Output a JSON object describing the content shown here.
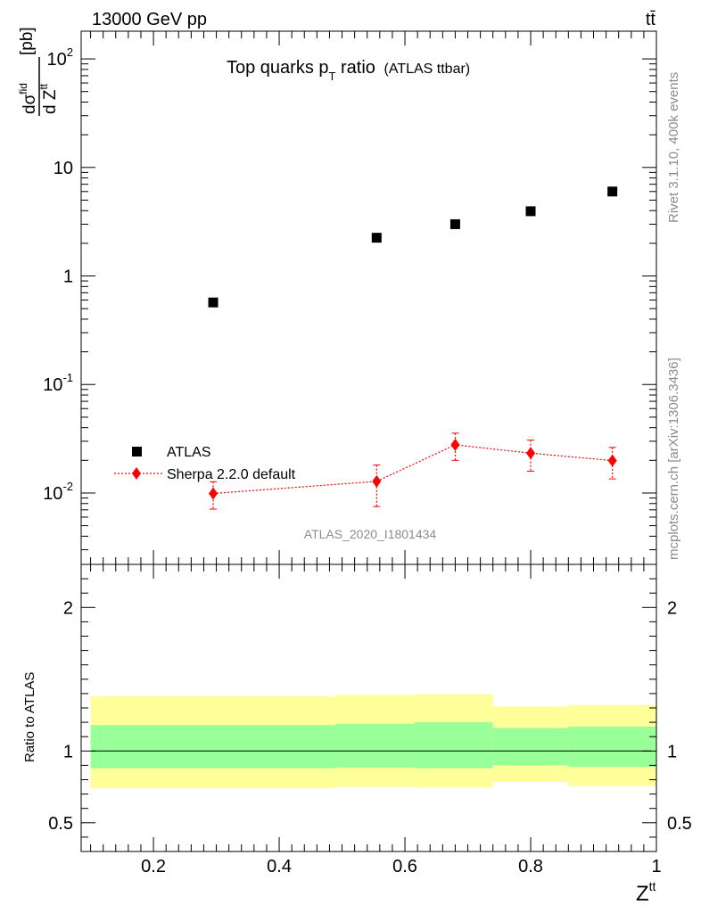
{
  "header": {
    "left": "13000 GeV pp",
    "right": "tt̄"
  },
  "side_text": {
    "top": "Rivet 3.1.10,  400k events",
    "bottom": "mcplots.cern.ch [arXiv:1306.3436]"
  },
  "chart_data": [
    {
      "type": "scatter",
      "title_main": "Top quarks p",
      "title_sub": "T",
      "title_rest": " ratio",
      "title_small": "(ATLAS ttbar)",
      "ylabel": "dσ^fid / d Z^tt [pb]",
      "yscale": "log",
      "ylim": [
        0.0022,
        180
      ],
      "xlim": [
        0.085,
        1.0
      ],
      "ytick_labels": [
        "10^-2",
        "10^-1",
        "1",
        "10",
        "10^2"
      ],
      "watermark": "ATLAS_2020_I1801434",
      "legend_position": "lower-left",
      "series": [
        {
          "name": "ATLAS",
          "color": "#000000",
          "marker": "square",
          "x": [
            0.295,
            0.555,
            0.68,
            0.8,
            0.93
          ],
          "y": [
            0.57,
            2.25,
            3.0,
            3.95,
            6.0
          ]
        },
        {
          "name": "Sherpa 2.2.0 default",
          "color": "#ff0000",
          "marker": "diamond",
          "line": "dotted",
          "x": [
            0.295,
            0.555,
            0.68,
            0.8,
            0.93
          ],
          "y": [
            0.0099,
            0.0128,
            0.0278,
            0.0233,
            0.0199
          ],
          "err_lo": [
            0.0028,
            0.0053,
            0.0078,
            0.0074,
            0.0064
          ],
          "err_hi": [
            0.0028,
            0.0053,
            0.0078,
            0.0074,
            0.0064
          ]
        }
      ]
    },
    {
      "type": "area",
      "ylabel": "Ratio to ATLAS",
      "xlabel": "Z^tt",
      "ylim": [
        0.3,
        2.3
      ],
      "xlim": [
        0.085,
        1.0
      ],
      "yticks": [
        0.5,
        1,
        2
      ],
      "ytick_labels": [
        "0.5",
        "1",
        "2"
      ],
      "xticks": [
        0.2,
        0.4,
        0.6,
        0.8,
        1.0
      ],
      "xtick_labels": [
        "0.2",
        "0.4",
        "0.6",
        "0.8",
        "1"
      ],
      "reference_line": 1,
      "bands": [
        {
          "x0": 0.1,
          "x1": 0.49,
          "green": [
            0.88,
            1.18
          ],
          "yellow": [
            0.74,
            1.38
          ]
        },
        {
          "x0": 0.49,
          "x1": 0.615,
          "green": [
            0.885,
            1.19
          ],
          "yellow": [
            0.75,
            1.39
          ]
        },
        {
          "x0": 0.615,
          "x1": 0.74,
          "green": [
            0.88,
            1.2
          ],
          "yellow": [
            0.745,
            1.395
          ]
        },
        {
          "x0": 0.74,
          "x1": 0.86,
          "green": [
            0.9,
            1.16
          ],
          "yellow": [
            0.785,
            1.31
          ]
        },
        {
          "x0": 0.86,
          "x1": 1.0,
          "green": [
            0.89,
            1.17
          ],
          "yellow": [
            0.755,
            1.32
          ]
        }
      ],
      "colors": {
        "green": "#99ff99",
        "yellow": "#ffff99"
      }
    }
  ]
}
